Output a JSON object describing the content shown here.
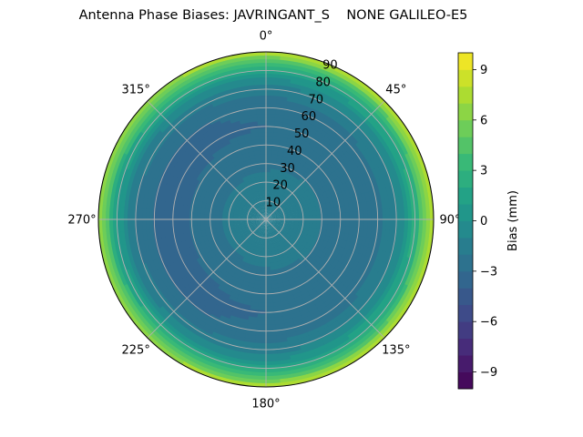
{
  "chart_data": {
    "type": "heatmap",
    "projection": "polar",
    "title": "Antenna Phase Biases: JAVRINGANT_S    NONE GALILEO-E5",
    "azimuth_ticks": [
      {
        "deg": 0,
        "label": "0°"
      },
      {
        "deg": 45,
        "label": "45°"
      },
      {
        "deg": 90,
        "label": "90°"
      },
      {
        "deg": 135,
        "label": "135°"
      },
      {
        "deg": 180,
        "label": "180°"
      },
      {
        "deg": 225,
        "label": "225°"
      },
      {
        "deg": 270,
        "label": "270°"
      },
      {
        "deg": 315,
        "label": "315°"
      }
    ],
    "radial_ticks": [
      {
        "value": 10,
        "label": "10"
      },
      {
        "value": 20,
        "label": "20"
      },
      {
        "value": 30,
        "label": "30"
      },
      {
        "value": 40,
        "label": "40"
      },
      {
        "value": 50,
        "label": "50"
      },
      {
        "value": 60,
        "label": "60"
      },
      {
        "value": 70,
        "label": "70"
      },
      {
        "value": 80,
        "label": "80"
      },
      {
        "value": 90,
        "label": "90"
      }
    ],
    "radial_range": [
      0,
      90
    ],
    "grid": true,
    "colormap": "viridis",
    "colorbar": {
      "label": "Bias (mm)",
      "range": [
        -10,
        10
      ],
      "levels": 20,
      "ticks": [
        {
          "value": -9,
          "label": "−9"
        },
        {
          "value": -6,
          "label": "−6"
        },
        {
          "value": -3,
          "label": "−3"
        },
        {
          "value": 0,
          "label": "0"
        },
        {
          "value": 3,
          "label": "3"
        },
        {
          "value": 6,
          "label": "6"
        },
        {
          "value": 9,
          "label": "9"
        }
      ]
    },
    "bias_profile": {
      "zenith_angle": [
        0,
        10,
        20,
        30,
        40,
        50,
        60,
        70,
        75,
        80,
        85,
        90
      ],
      "bias": [
        -1.2,
        -1.4,
        -1.7,
        -2.2,
        -2.7,
        -3.0,
        -2.8,
        -1.5,
        -0.2,
        1.8,
        4.5,
        8.0
      ],
      "azimuth_modulation": 0.6
    }
  }
}
